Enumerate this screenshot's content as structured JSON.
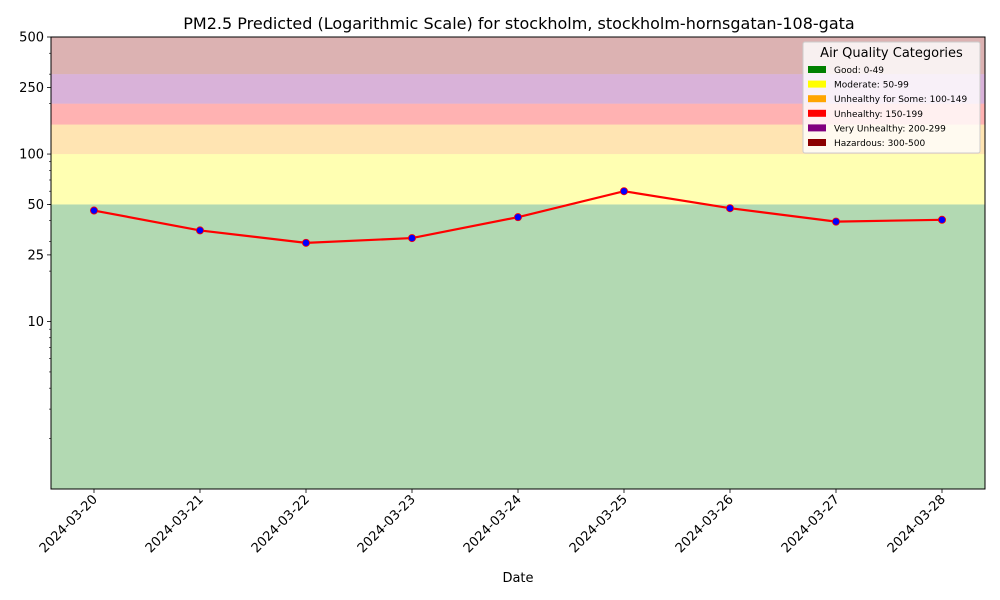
{
  "chart_data": {
    "type": "line",
    "title": "PM2.5 Predicted (Logarithmic Scale) for stockholm, stockholm-hornsgatan-108-gata",
    "xlabel": "Date",
    "ylabel": "",
    "yscale": "log",
    "ylim": [
      1,
      500
    ],
    "y_ticks": [
      10,
      25,
      50,
      100,
      250,
      500
    ],
    "y_tick_labels": [
      "10",
      "25",
      "50",
      "100",
      "250",
      "500"
    ],
    "categories": [
      "2024-03-20",
      "2024-03-21",
      "2024-03-22",
      "2024-03-23",
      "2024-03-24",
      "2024-03-25",
      "2024-03-26",
      "2024-03-27",
      "2024-03-28"
    ],
    "series": [
      {
        "values": [
          46,
          35,
          29.5,
          31.5,
          42,
          60,
          47.5,
          39.5,
          40.5
        ],
        "line_color": "#ff0000",
        "marker_color": "#0000ff"
      }
    ],
    "bands": [
      {
        "min": 1,
        "max": 50,
        "color": "#008000"
      },
      {
        "min": 50,
        "max": 100,
        "color": "#ffff00"
      },
      {
        "min": 100,
        "max": 150,
        "color": "#ffa500"
      },
      {
        "min": 150,
        "max": 200,
        "color": "#ff0000"
      },
      {
        "min": 200,
        "max": 300,
        "color": "#800080"
      },
      {
        "min": 300,
        "max": 500,
        "color": "#8b0000"
      }
    ],
    "legend": {
      "title": "Air Quality Categories",
      "placement": "top-right",
      "entries": [
        {
          "label": "Good: 0-49",
          "color": "#008000"
        },
        {
          "label": "Moderate: 50-99",
          "color": "#ffff00"
        },
        {
          "label": "Unhealthy for Some: 100-149",
          "color": "#ffa500"
        },
        {
          "label": "Unhealthy: 150-199",
          "color": "#ff0000"
        },
        {
          "label": "Very Unhealthy: 200-299",
          "color": "#800080"
        },
        {
          "label": "Hazardous: 300-500",
          "color": "#8b0000"
        }
      ]
    },
    "grid": false
  }
}
